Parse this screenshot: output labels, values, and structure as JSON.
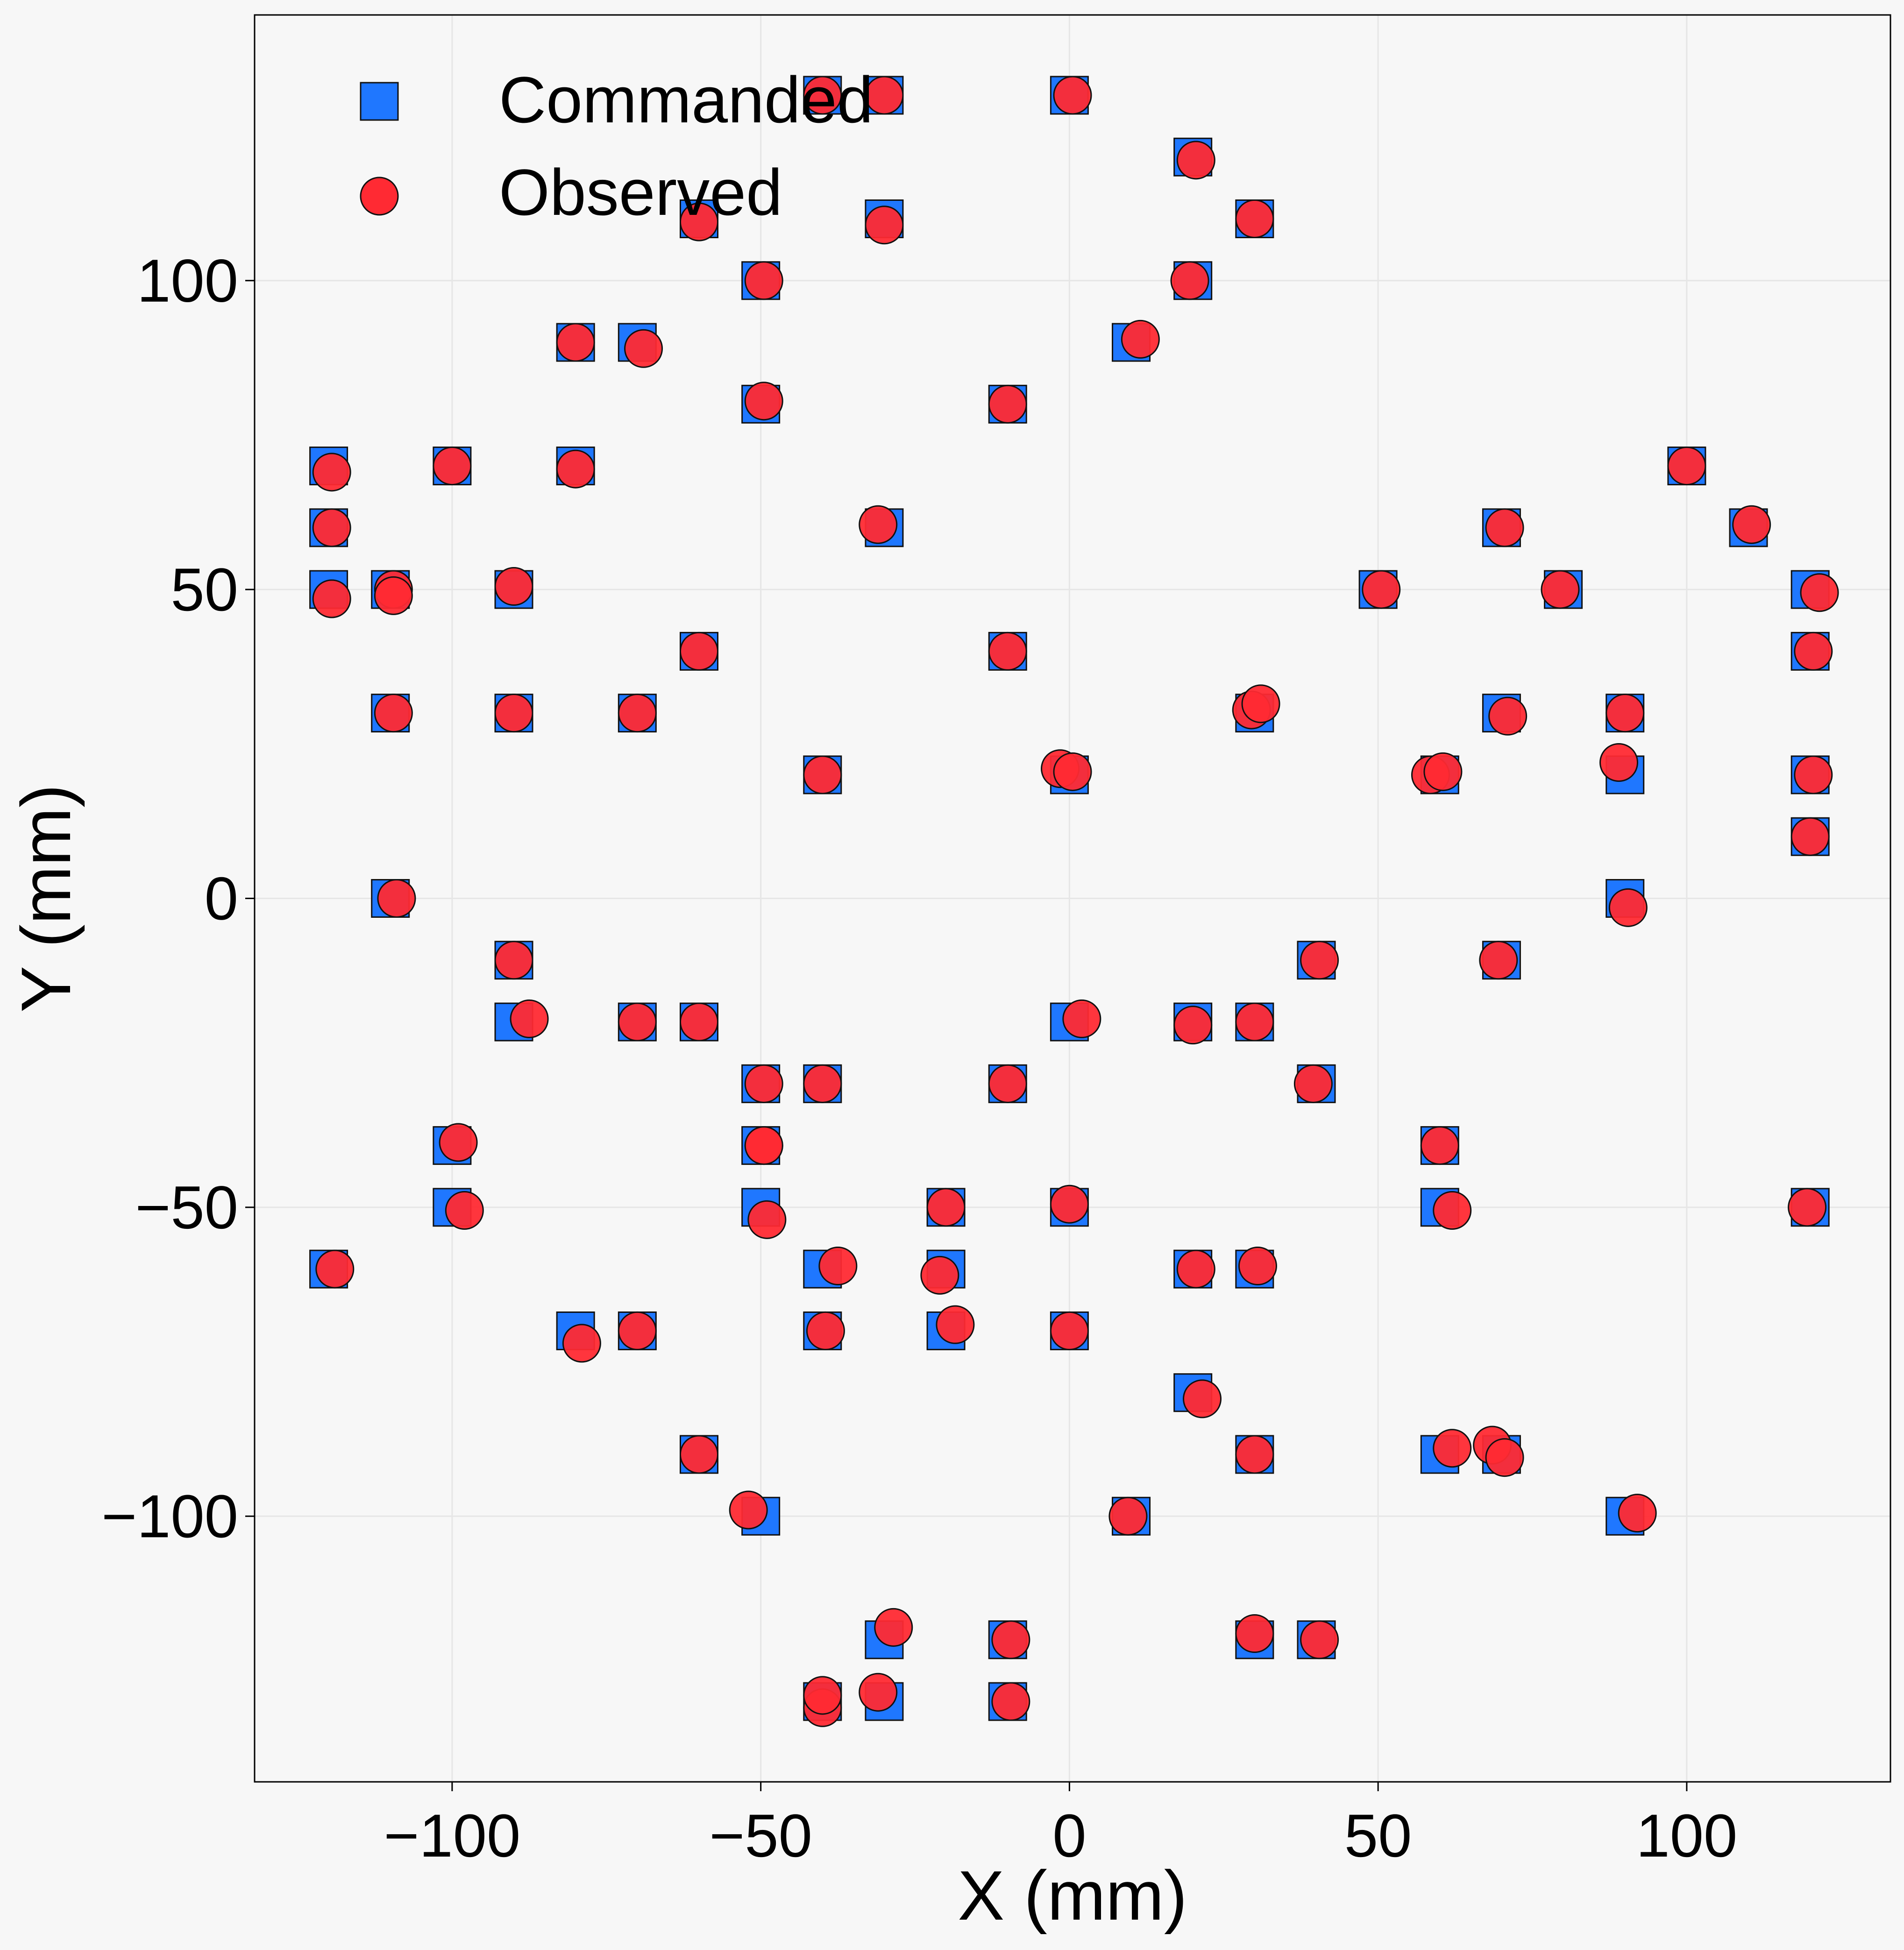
{
  "chart_data": {
    "type": "scatter",
    "title": "",
    "xlabel": "X (mm)",
    "ylabel": "Y (mm)",
    "xlim": [
      -132,
      133
    ],
    "ylim": [
      -143,
      143
    ],
    "xticks": [
      -100,
      -50,
      0,
      50,
      100
    ],
    "yticks": [
      -100,
      -50,
      0,
      50,
      100
    ],
    "xtick_labels": [
      "−100",
      "−50",
      "0",
      "50",
      "100"
    ],
    "ytick_labels": [
      "−100",
      "−50",
      "0",
      "50",
      "100"
    ],
    "grid": true,
    "legend_position": "top-left",
    "colors": {
      "commanded": "#1f77ff",
      "observed": "#ff2a33",
      "background": "#f7f7f7",
      "grid": "#e6e6e6"
    },
    "series": [
      {
        "name": "Commanded",
        "marker": "square",
        "points": [
          [
            -120,
            70
          ],
          [
            -120,
            60
          ],
          [
            -120,
            50
          ],
          [
            -110,
            50
          ],
          [
            -110,
            30
          ],
          [
            -110,
            0
          ],
          [
            -100,
            70
          ],
          [
            -100,
            -40
          ],
          [
            -100,
            -50
          ],
          [
            -120,
            -60
          ],
          [
            -90,
            50
          ],
          [
            -90,
            30
          ],
          [
            -90,
            -10
          ],
          [
            -90,
            -20
          ],
          [
            -80,
            90
          ],
          [
            -80,
            70
          ],
          [
            -80,
            -70
          ],
          [
            -70,
            90
          ],
          [
            -70,
            30
          ],
          [
            -70,
            -20
          ],
          [
            -70,
            -70
          ],
          [
            -60,
            110
          ],
          [
            -60,
            40
          ],
          [
            -60,
            -20
          ],
          [
            -60,
            -90
          ],
          [
            -50,
            100
          ],
          [
            -50,
            80
          ],
          [
            -50,
            -30
          ],
          [
            -50,
            -40
          ],
          [
            -50,
            -50
          ],
          [
            -50,
            -100
          ],
          [
            -40,
            130
          ],
          [
            -40,
            20
          ],
          [
            -40,
            -30
          ],
          [
            -40,
            -60
          ],
          [
            -40,
            -70
          ],
          [
            -40,
            -130
          ],
          [
            -30,
            130
          ],
          [
            -30,
            110
          ],
          [
            -30,
            60
          ],
          [
            -30,
            -120
          ],
          [
            -30,
            -130
          ],
          [
            -20,
            -50
          ],
          [
            -20,
            -60
          ],
          [
            -20,
            -70
          ],
          [
            -10,
            80
          ],
          [
            -10,
            40
          ],
          [
            -10,
            -30
          ],
          [
            -10,
            -120
          ],
          [
            -10,
            -130
          ],
          [
            0,
            130
          ],
          [
            0,
            20
          ],
          [
            0,
            -20
          ],
          [
            0,
            -50
          ],
          [
            0,
            -70
          ],
          [
            10,
            90
          ],
          [
            10,
            -100
          ],
          [
            20,
            120
          ],
          [
            20,
            100
          ],
          [
            20,
            -20
          ],
          [
            20,
            -60
          ],
          [
            20,
            -80
          ],
          [
            30,
            110
          ],
          [
            30,
            30
          ],
          [
            30,
            -20
          ],
          [
            30,
            -60
          ],
          [
            30,
            -90
          ],
          [
            30,
            -120
          ],
          [
            40,
            -10
          ],
          [
            40,
            -30
          ],
          [
            40,
            -120
          ],
          [
            50,
            50
          ],
          [
            60,
            20
          ],
          [
            60,
            -40
          ],
          [
            60,
            -50
          ],
          [
            60,
            -90
          ],
          [
            70,
            60
          ],
          [
            70,
            30
          ],
          [
            70,
            -10
          ],
          [
            70,
            -90
          ],
          [
            80,
            50
          ],
          [
            90,
            30
          ],
          [
            90,
            20
          ],
          [
            90,
            0
          ],
          [
            90,
            -100
          ],
          [
            100,
            70
          ],
          [
            110,
            60
          ],
          [
            120,
            50
          ],
          [
            120,
            40
          ],
          [
            120,
            20
          ],
          [
            120,
            10
          ],
          [
            120,
            -50
          ]
        ]
      },
      {
        "name": "Observed",
        "marker": "circle",
        "points": [
          [
            -119.5,
            69
          ],
          [
            -119.5,
            60
          ],
          [
            -119.5,
            48.5
          ],
          [
            -109.5,
            50
          ],
          [
            -109.5,
            49
          ],
          [
            -109.5,
            30
          ],
          [
            -109,
            0
          ],
          [
            -100,
            70
          ],
          [
            -99,
            -39.5
          ],
          [
            -98,
            -50.5
          ],
          [
            -119,
            -60
          ],
          [
            -90,
            50.5
          ],
          [
            -90,
            30
          ],
          [
            -90,
            -10
          ],
          [
            -87.5,
            -19.5
          ],
          [
            -80,
            90
          ],
          [
            -80,
            69.5
          ],
          [
            -79,
            -72
          ],
          [
            -69,
            89
          ],
          [
            -70,
            30
          ],
          [
            -70,
            -20
          ],
          [
            -70,
            -70
          ],
          [
            -60,
            109.5
          ],
          [
            -60,
            40
          ],
          [
            -60,
            -20
          ],
          [
            -60,
            -90
          ],
          [
            -49.5,
            100
          ],
          [
            -49.5,
            80.5
          ],
          [
            -49.5,
            -30
          ],
          [
            -49.5,
            -40
          ],
          [
            -49.5,
            -40
          ],
          [
            -49,
            -52
          ],
          [
            -52,
            -99
          ],
          [
            -40,
            130
          ],
          [
            -40,
            20
          ],
          [
            -40,
            -30
          ],
          [
            -37.5,
            -59.5
          ],
          [
            -39.5,
            -70
          ],
          [
            -40,
            -131
          ],
          [
            -40,
            -129
          ],
          [
            -30,
            130
          ],
          [
            -30,
            109
          ],
          [
            -31,
            60.5
          ],
          [
            -28.5,
            -118
          ],
          [
            -31,
            -128.5
          ],
          [
            -20,
            -50
          ],
          [
            -21,
            -61
          ],
          [
            -18.5,
            -69
          ],
          [
            -10,
            80
          ],
          [
            -10,
            40
          ],
          [
            -10,
            -30
          ],
          [
            -9.5,
            -120
          ],
          [
            -9.5,
            -130
          ],
          [
            0.5,
            130
          ],
          [
            -1.5,
            21
          ],
          [
            0.5,
            20.5
          ],
          [
            2,
            -19.5
          ],
          [
            0,
            -49.5
          ],
          [
            0,
            -70
          ],
          [
            11.5,
            90.5
          ],
          [
            9.5,
            -100
          ],
          [
            20.5,
            119.5
          ],
          [
            19.5,
            100
          ],
          [
            20,
            -20.5
          ],
          [
            20.5,
            -60
          ],
          [
            21.5,
            -81
          ],
          [
            30,
            110
          ],
          [
            29.5,
            30.5
          ],
          [
            31,
            31.5
          ],
          [
            30,
            -20
          ],
          [
            30.5,
            -59.5
          ],
          [
            30,
            -90
          ],
          [
            30,
            -119
          ],
          [
            40.5,
            -10
          ],
          [
            39.5,
            -30
          ],
          [
            40.5,
            -120
          ],
          [
            50.5,
            50
          ],
          [
            58.5,
            20
          ],
          [
            60.5,
            20.5
          ],
          [
            60,
            -40
          ],
          [
            62,
            -50.5
          ],
          [
            62,
            -89
          ],
          [
            70.5,
            60
          ],
          [
            71,
            29.5
          ],
          [
            69.5,
            -10
          ],
          [
            68.5,
            -88.5
          ],
          [
            70.5,
            -90.5
          ],
          [
            79.5,
            50
          ],
          [
            90,
            30
          ],
          [
            89,
            22
          ],
          [
            90.5,
            -1.5
          ],
          [
            92,
            -99.5
          ],
          [
            100,
            70
          ],
          [
            110.5,
            60.5
          ],
          [
            121.5,
            49.5
          ],
          [
            120.5,
            40
          ],
          [
            120.5,
            20
          ],
          [
            120,
            10
          ],
          [
            119.5,
            -50
          ]
        ]
      }
    ]
  }
}
